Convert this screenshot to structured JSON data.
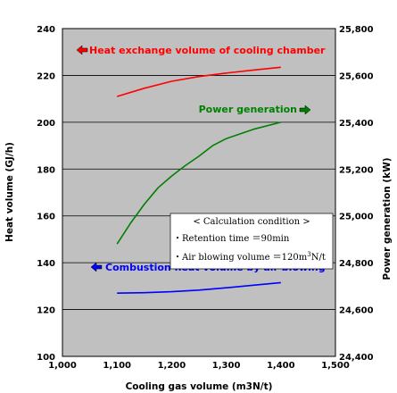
{
  "chart_data": {
    "type": "line",
    "xlabel": "Cooling gas volume (m3N/t)",
    "ylabel": "Heat volume (GJ/h)",
    "y2label": "Power generation (kW)",
    "xlim": [
      1000,
      1500
    ],
    "ylim": [
      100,
      240
    ],
    "y2lim": [
      24400,
      25800
    ],
    "x_ticks": [
      "1,000",
      "1,100",
      "1,200",
      "1,300",
      "1,400",
      "1,500"
    ],
    "y_ticks": [
      "100",
      "120",
      "140",
      "160",
      "180",
      "200",
      "220",
      "240"
    ],
    "y2_ticks": [
      "24,400",
      "24,600",
      "24,800",
      "25,000",
      "25,200",
      "25,400",
      "25,600",
      "25,800"
    ],
    "grid": true,
    "background": "#c0c0c0",
    "series": [
      {
        "name": "Heat exchange volume of cooling chamber",
        "axis": "left",
        "color": "#ff0000",
        "x": [
          1100,
          1150,
          1200,
          1250,
          1300,
          1350,
          1400
        ],
        "y": [
          211,
          214.5,
          217.5,
          219.5,
          221,
          222.3,
          223.5
        ]
      },
      {
        "name": "Power generation",
        "axis": "right",
        "color": "#008000",
        "x": [
          1100,
          1125,
          1150,
          1175,
          1200,
          1225,
          1250,
          1275,
          1300,
          1350,
          1400
        ],
        "y": [
          24880,
          24970,
          25050,
          25120,
          25170,
          25215,
          25255,
          25300,
          25330,
          25370,
          25400
        ]
      },
      {
        "name": "Combustion heat volume by air blowing",
        "axis": "left",
        "color": "#0000ff",
        "x": [
          1100,
          1150,
          1200,
          1250,
          1300,
          1350,
          1400
        ],
        "y": [
          127,
          127.2,
          127.6,
          128.3,
          129.3,
          130.4,
          131.5
        ]
      }
    ],
    "annotations": {
      "heat_exchange": "Heat exchange volume of cooling chamber",
      "power_generation": "Power generation",
      "combustion": "Combustion heat volume by air blowing",
      "condition_title": "<  Calculation condition  >",
      "condition_line1": "・Retention time ＝90min",
      "condition_line2_prefix": "・Air blowing volume ＝120m",
      "condition_line2_sup": "3",
      "condition_line2_suffix": "N/t"
    }
  }
}
